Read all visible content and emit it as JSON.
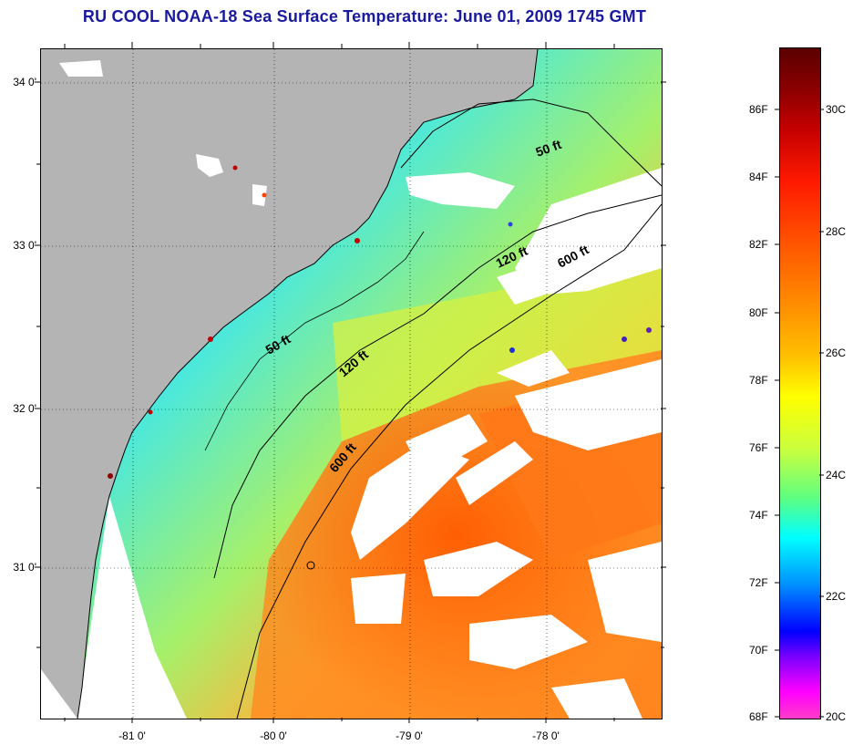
{
  "title": "RU COOL  NOAA-18  Sea Surface Temperature:  June 01, 2009 1745 GMT",
  "lat_labels": [
    "34 0'",
    "33 0'",
    "32 0'",
    "31 0'"
  ],
  "lon_labels": [
    "-81 0'",
    "-80 0'",
    "-79 0'",
    "-78 0'"
  ],
  "isobaths": {
    "d50_upper": "50 ft",
    "d120_upper": "120 ft",
    "d600_upper": "600 ft",
    "d50_mid": "50 ft",
    "d120_mid": "120 ft",
    "d600_mid": "600 ft"
  },
  "colorbar": {
    "fahrenheit": [
      "86F",
      "84F",
      "82F",
      "80F",
      "78F",
      "76F",
      "74F",
      "72F",
      "70F",
      "68F"
    ],
    "celsius": [
      "30C",
      "28C",
      "26C",
      "24C",
      "22C",
      "20C"
    ]
  },
  "colors": {
    "title": "#1a1aa0",
    "land": "#b4b4b4",
    "cloud": "#ffffff",
    "cool_water": "#3cf0e6",
    "mid_water": "#b4f064",
    "warm_water": "#ff7a14"
  }
}
